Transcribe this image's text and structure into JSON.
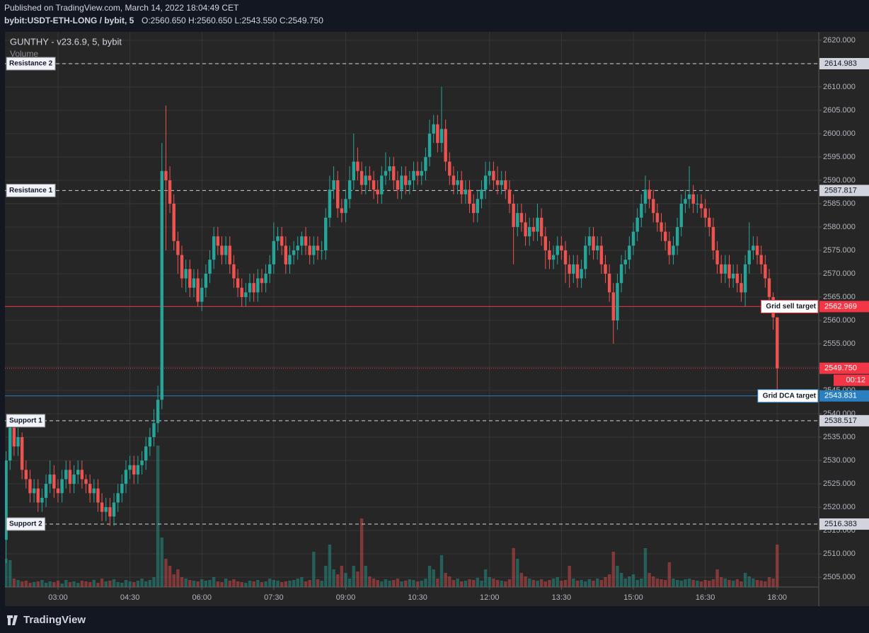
{
  "chart_data": {
    "type": "candlestick",
    "published": "Published on TradingView.com, March 14, 2022 18:04:49 CET",
    "symbol": "bybit:USDT-ETH-LONG / bybit, 5",
    "ohlc": "O:2560.650 H:2560.650 L:2543.550 C:2549.750",
    "indicator": "GUNTHY - v23.6.9, 5, bybit",
    "volume_label": "Volume",
    "brand": "TradingView",
    "up_color": "#26a69a",
    "down_color": "#ef5350",
    "grid": true,
    "xlim": [
      113.6,
      1132
    ],
    "xticks": [
      {
        "value": 180,
        "label": "03:00"
      },
      {
        "value": 270,
        "label": "04:30"
      },
      {
        "value": 360,
        "label": "06:00"
      },
      {
        "value": 450,
        "label": "07:30"
      },
      {
        "value": 540,
        "label": "09:00"
      },
      {
        "value": 630,
        "label": "10:30"
      },
      {
        "value": 720,
        "label": "12:00"
      },
      {
        "value": 810,
        "label": "13:30"
      },
      {
        "value": 900,
        "label": "15:00"
      },
      {
        "value": 990,
        "label": "16:30"
      },
      {
        "value": 1080,
        "label": "18:00"
      }
    ],
    "ylim": [
      2502.9,
      2621.8
    ],
    "yticks": [
      {
        "value": 2505,
        "label": "2505.000"
      },
      {
        "value": 2510,
        "label": "2510.000"
      },
      {
        "value": 2515,
        "label": "2515.000"
      },
      {
        "value": 2520,
        "label": "2520.000"
      },
      {
        "value": 2525,
        "label": "2525.000"
      },
      {
        "value": 2530,
        "label": "2530.000"
      },
      {
        "value": 2535,
        "label": "2535.000"
      },
      {
        "value": 2540,
        "label": "2540.000"
      },
      {
        "value": 2545,
        "label": "2545.000"
      },
      {
        "value": 2550,
        "label": "2550.000"
      },
      {
        "value": 2555,
        "label": "2555.000"
      },
      {
        "value": 2560,
        "label": "2560.000"
      },
      {
        "value": 2565,
        "label": "2565.000"
      },
      {
        "value": 2570,
        "label": "2570.000"
      },
      {
        "value": 2575,
        "label": "2575.000"
      },
      {
        "value": 2580,
        "label": "2580.000"
      },
      {
        "value": 2585,
        "label": "2585.000"
      },
      {
        "value": 2590,
        "label": "2590.000"
      },
      {
        "value": 2595,
        "label": "2595.000"
      },
      {
        "value": 2600,
        "label": "2600.000"
      },
      {
        "value": 2605,
        "label": "2605.000"
      },
      {
        "value": 2610,
        "label": "2610.000"
      },
      {
        "value": 2615,
        "label": "2615.000"
      },
      {
        "value": 2620,
        "label": "2620.000"
      }
    ],
    "x": [
      115,
      120,
      125,
      130,
      135,
      140,
      145,
      150,
      155,
      160,
      165,
      170,
      175,
      180,
      185,
      190,
      195,
      200,
      205,
      210,
      215,
      220,
      225,
      230,
      235,
      240,
      245,
      250,
      255,
      260,
      265,
      270,
      275,
      280,
      285,
      290,
      295,
      300,
      305,
      310,
      315,
      320,
      325,
      330,
      335,
      340,
      345,
      350,
      355,
      360,
      365,
      370,
      375,
      380,
      385,
      390,
      395,
      400,
      405,
      410,
      415,
      420,
      425,
      430,
      435,
      440,
      445,
      450,
      455,
      460,
      465,
      470,
      475,
      480,
      485,
      490,
      495,
      500,
      505,
      510,
      515,
      520,
      525,
      530,
      535,
      540,
      545,
      550,
      555,
      560,
      565,
      570,
      575,
      580,
      585,
      590,
      595,
      600,
      605,
      610,
      615,
      620,
      625,
      630,
      635,
      640,
      645,
      650,
      655,
      660,
      665,
      670,
      675,
      680,
      685,
      690,
      695,
      700,
      705,
      710,
      715,
      720,
      725,
      730,
      735,
      740,
      745,
      750,
      755,
      760,
      765,
      770,
      775,
      780,
      785,
      790,
      795,
      800,
      805,
      810,
      815,
      820,
      825,
      830,
      835,
      840,
      845,
      850,
      855,
      860,
      865,
      870,
      875,
      880,
      885,
      890,
      895,
      900,
      905,
      910,
      915,
      920,
      925,
      930,
      935,
      940,
      945,
      950,
      955,
      960,
      965,
      970,
      975,
      980,
      985,
      990,
      995,
      1000,
      1005,
      1010,
      1015,
      1020,
      1025,
      1030,
      1035,
      1040,
      1045,
      1050,
      1055,
      1060,
      1065,
      1070,
      1075,
      1080
    ],
    "open": [
      2513,
      2530,
      2537,
      2533,
      2535,
      2528,
      2526,
      2523,
      2524,
      2521,
      2522,
      2525,
      2527,
      2524,
      2523,
      2526,
      2528,
      2525,
      2527,
      2528,
      2526,
      2525,
      2523,
      2524,
      2521,
      2519,
      2520,
      2518,
      2521,
      2523,
      2525,
      2528,
      2529,
      2527,
      2529,
      2530,
      2533,
      2535,
      2538,
      2543,
      2592,
      2590,
      2585,
      2577,
      2574,
      2569,
      2571,
      2567,
      2569,
      2564,
      2567,
      2570,
      2573,
      2578,
      2576,
      2574,
      2576,
      2572,
      2569,
      2567,
      2565,
      2566,
      2568,
      2566,
      2569,
      2568,
      2570,
      2572,
      2577,
      2578,
      2576,
      2572,
      2574,
      2575,
      2576,
      2578,
      2576,
      2574,
      2576,
      2575,
      2575,
      2582,
      2588,
      2590,
      2584,
      2583,
      2586,
      2590,
      2594,
      2592,
      2589,
      2591,
      2590,
      2588,
      2587,
      2591,
      2592,
      2593,
      2590,
      2588,
      2591,
      2589,
      2590,
      2592,
      2591,
      2592,
      2595,
      2600,
      2602,
      2598,
      2601,
      2594,
      2591,
      2589,
      2590,
      2587,
      2588,
      2585,
      2583,
      2586,
      2588,
      2591,
      2592,
      2590,
      2589,
      2590,
      2588,
      2585,
      2580,
      2583,
      2581,
      2578,
      2580,
      2579,
      2582,
      2578,
      2575,
      2573,
      2574,
      2576,
      2575,
      2572,
      2570,
      2572,
      2569,
      2571,
      2576,
      2578,
      2575,
      2576,
      2572,
      2570,
      2566,
      2560,
      2568,
      2572,
      2573,
      2576,
      2579,
      2582,
      2585,
      2588,
      2586,
      2583,
      2581,
      2579,
      2577,
      2574,
      2576,
      2580,
      2585,
      2586,
      2587,
      2585,
      2585,
      2584,
      2582,
      2580,
      2575,
      2572,
      2570,
      2572,
      2569,
      2570,
      2568,
      2566,
      2572,
      2575,
      2576,
      2574,
      2572,
      2569,
      2565,
      2560.65
    ],
    "high": [
      2532,
      2540,
      2539,
      2537,
      2536,
      2530,
      2528,
      2526,
      2526,
      2524,
      2527,
      2530,
      2529,
      2526,
      2528,
      2530,
      2530,
      2529,
      2530,
      2530,
      2527,
      2527,
      2526,
      2526,
      2523,
      2522,
      2522,
      2523,
      2525,
      2527,
      2530,
      2531,
      2531,
      2531,
      2532,
      2535,
      2537,
      2541,
      2546,
      2598,
      2606,
      2593,
      2587,
      2579,
      2576,
      2573,
      2573,
      2571,
      2571,
      2569,
      2572,
      2575,
      2580,
      2580,
      2578,
      2578,
      2578,
      2574,
      2571,
      2569,
      2568,
      2570,
      2570,
      2571,
      2571,
      2572,
      2574,
      2581,
      2580,
      2580,
      2578,
      2576,
      2577,
      2578,
      2579,
      2580,
      2578,
      2578,
      2578,
      2577,
      2584,
      2591,
      2593,
      2592,
      2586,
      2588,
      2593,
      2600,
      2597,
      2594,
      2593,
      2593,
      2592,
      2590,
      2593,
      2596,
      2595,
      2595,
      2592,
      2593,
      2593,
      2592,
      2594,
      2594,
      2594,
      2597,
      2603,
      2604,
      2604,
      2610,
      2603,
      2596,
      2593,
      2592,
      2592,
      2590,
      2590,
      2587,
      2588,
      2590,
      2594,
      2594,
      2594,
      2593,
      2592,
      2592,
      2590,
      2587,
      2585,
      2585,
      2583,
      2582,
      2582,
      2585,
      2584,
      2580,
      2577,
      2576,
      2578,
      2578,
      2577,
      2574,
      2574,
      2574,
      2573,
      2578,
      2580,
      2580,
      2578,
      2578,
      2574,
      2572,
      2568,
      2570,
      2574,
      2575,
      2578,
      2581,
      2584,
      2587,
      2591,
      2590,
      2588,
      2585,
      2583,
      2581,
      2579,
      2578,
      2582,
      2587,
      2588,
      2593,
      2589,
      2587,
      2587,
      2586,
      2584,
      2582,
      2577,
      2574,
      2574,
      2574,
      2572,
      2572,
      2570,
      2574,
      2581,
      2578,
      2578,
      2576,
      2574,
      2571,
      2566,
      2560.65
    ],
    "low": [
      2508,
      2528,
      2531,
      2531,
      2526,
      2524,
      2521,
      2521,
      2519,
      2519,
      2520,
      2523,
      2522,
      2521,
      2521,
      2524,
      2523,
      2523,
      2525,
      2524,
      2523,
      2521,
      2521,
      2519,
      2517,
      2517,
      2516,
      2516,
      2519,
      2521,
      2523,
      2526,
      2525,
      2525,
      2527,
      2528,
      2531,
      2533,
      2536,
      2541,
      2575,
      2583,
      2575,
      2570,
      2567,
      2566,
      2565,
      2565,
      2563,
      2562,
      2565,
      2568,
      2571,
      2574,
      2572,
      2572,
      2570,
      2567,
      2565,
      2563,
      2563,
      2564,
      2564,
      2564,
      2566,
      2566,
      2568,
      2570,
      2575,
      2574,
      2570,
      2570,
      2572,
      2573,
      2574,
      2574,
      2572,
      2572,
      2573,
      2573,
      2573,
      2580,
      2586,
      2582,
      2581,
      2581,
      2584,
      2588,
      2590,
      2587,
      2587,
      2588,
      2586,
      2585,
      2585,
      2589,
      2590,
      2588,
      2586,
      2586,
      2587,
      2587,
      2588,
      2589,
      2589,
      2590,
      2593,
      2598,
      2596,
      2596,
      2592,
      2589,
      2587,
      2587,
      2585,
      2585,
      2583,
      2581,
      2581,
      2584,
      2586,
      2589,
      2588,
      2587,
      2587,
      2586,
      2583,
      2572,
      2578,
      2579,
      2576,
      2576,
      2577,
      2577,
      2576,
      2571,
      2571,
      2571,
      2572,
      2573,
      2568,
      2567,
      2568,
      2567,
      2567,
      2569,
      2574,
      2573,
      2573,
      2570,
      2568,
      2564,
      2555,
      2558,
      2566,
      2570,
      2571,
      2574,
      2577,
      2580,
      2583,
      2584,
      2581,
      2579,
      2577,
      2575,
      2572,
      2572,
      2574,
      2578,
      2583,
      2584,
      2583,
      2583,
      2582,
      2580,
      2578,
      2573,
      2570,
      2568,
      2568,
      2567,
      2567,
      2566,
      2564,
      2563,
      2570,
      2573,
      2572,
      2570,
      2567,
      2563,
      2558,
      2543.55
    ],
    "close": [
      2530,
      2537,
      2533,
      2535,
      2528,
      2526,
      2523,
      2524,
      2521,
      2522,
      2525,
      2527,
      2524,
      2523,
      2526,
      2528,
      2525,
      2527,
      2528,
      2526,
      2525,
      2523,
      2524,
      2521,
      2519,
      2520,
      2518,
      2521,
      2523,
      2525,
      2528,
      2529,
      2527,
      2529,
      2530,
      2533,
      2535,
      2538,
      2543,
      2592,
      2590,
      2585,
      2577,
      2574,
      2569,
      2571,
      2567,
      2569,
      2564,
      2567,
      2570,
      2573,
      2578,
      2576,
      2574,
      2576,
      2572,
      2569,
      2567,
      2565,
      2566,
      2568,
      2566,
      2569,
      2568,
      2570,
      2572,
      2577,
      2578,
      2576,
      2572,
      2574,
      2575,
      2576,
      2578,
      2576,
      2574,
      2576,
      2575,
      2575,
      2582,
      2588,
      2590,
      2584,
      2583,
      2586,
      2590,
      2594,
      2592,
      2589,
      2591,
      2590,
      2588,
      2587,
      2591,
      2592,
      2593,
      2590,
      2588,
      2591,
      2589,
      2590,
      2592,
      2591,
      2592,
      2595,
      2600,
      2602,
      2598,
      2601,
      2594,
      2591,
      2589,
      2590,
      2587,
      2588,
      2585,
      2583,
      2586,
      2588,
      2591,
      2592,
      2590,
      2589,
      2590,
      2588,
      2585,
      2580,
      2583,
      2581,
      2578,
      2580,
      2579,
      2582,
      2578,
      2575,
      2573,
      2574,
      2576,
      2575,
      2572,
      2570,
      2572,
      2569,
      2571,
      2576,
      2578,
      2575,
      2576,
      2572,
      2570,
      2566,
      2560,
      2568,
      2572,
      2573,
      2576,
      2579,
      2582,
      2585,
      2588,
      2586,
      2583,
      2581,
      2579,
      2577,
      2574,
      2576,
      2580,
      2585,
      2586,
      2587,
      2585,
      2585,
      2584,
      2582,
      2580,
      2575,
      2572,
      2570,
      2572,
      2569,
      2570,
      2568,
      2566,
      2572,
      2575,
      2576,
      2574,
      2572,
      2569,
      2565,
      2560.65,
      2549.75
    ],
    "volume": [
      40,
      38,
      12,
      10,
      8,
      9,
      6,
      7,
      8,
      10,
      6,
      8,
      7,
      9,
      5,
      10,
      7,
      8,
      6,
      9,
      8,
      7,
      10,
      6,
      12,
      8,
      9,
      11,
      7,
      6,
      10,
      8,
      7,
      9,
      12,
      8,
      10,
      14,
      200,
      70,
      40,
      30,
      18,
      25,
      14,
      12,
      10,
      9,
      8,
      11,
      9,
      10,
      14,
      8,
      7,
      12,
      9,
      11,
      8,
      7,
      6,
      9,
      8,
      10,
      7,
      8,
      12,
      10,
      9,
      7,
      8,
      9,
      10,
      12,
      14,
      8,
      10,
      50,
      11,
      9,
      30,
      60,
      25,
      18,
      30,
      20,
      12,
      30,
      22,
      97,
      30,
      15,
      12,
      10,
      8,
      11,
      9,
      10,
      12,
      8,
      9,
      11,
      10,
      8,
      9,
      12,
      30,
      25,
      12,
      45,
      20,
      15,
      10,
      12,
      8,
      9,
      11,
      10,
      13,
      9,
      25,
      14,
      12,
      10,
      9,
      8,
      11,
      55,
      40,
      20,
      15,
      12,
      10,
      9,
      11,
      8,
      10,
      12,
      14,
      9,
      10,
      30,
      12,
      9,
      10,
      8,
      11,
      9,
      12,
      10,
      14,
      18,
      50,
      30,
      20,
      12,
      15,
      18,
      10,
      12,
      55,
      20,
      15,
      12,
      11,
      10,
      35,
      12,
      10,
      9,
      11,
      12,
      10,
      9,
      8,
      10,
      9,
      11,
      25,
      14,
      12,
      10,
      9,
      11,
      8,
      20,
      15,
      12,
      10,
      9,
      8,
      14,
      12,
      60
    ],
    "levels": [
      {
        "name": "Resistance 2",
        "value": 2614.983,
        "color": "#d1d4dc"
      },
      {
        "name": "Resistance 1",
        "value": 2587.817,
        "color": "#d1d4dc"
      },
      {
        "name": "Support 1",
        "value": 2538.517,
        "color": "#d1d4dc"
      },
      {
        "name": "Support 2",
        "value": 2516.383,
        "color": "#d1d4dc"
      }
    ],
    "targets": [
      {
        "name": "Grid sell target",
        "value": 2562.969,
        "color": "#f23645"
      },
      {
        "name": "Grid DCA target",
        "value": 2543.831,
        "color": "#2a7fc1"
      }
    ],
    "last_price": {
      "value": 2549.75,
      "label": "2549.750",
      "countdown": "00:12",
      "color": "#f23645"
    }
  }
}
